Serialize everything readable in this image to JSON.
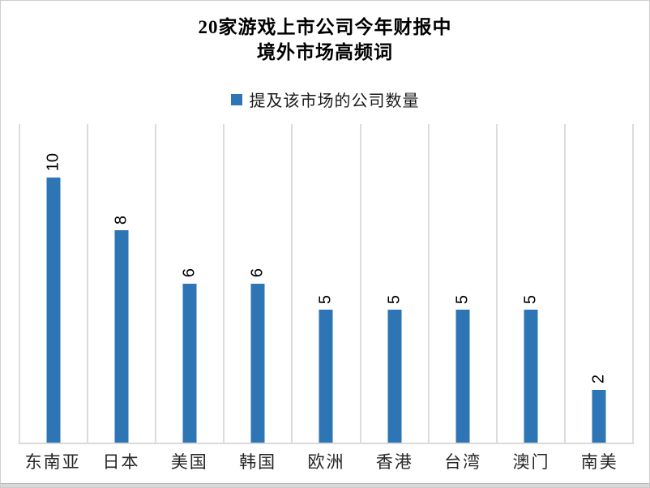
{
  "chart": {
    "title_line1": "20家游戏上市公司今年财报中",
    "title_line2": "境外市场高频词",
    "legend_label": "提及该市场的公司数量"
  },
  "chart_data": {
    "type": "bar",
    "title": "20家游戏上市公司今年财报中 境外市场高频词",
    "categories": [
      "东南亚",
      "日本",
      "美国",
      "韩国",
      "欧洲",
      "香港",
      "台湾",
      "澳门",
      "南美"
    ],
    "series": [
      {
        "name": "提及该市场的公司数量",
        "values": [
          10,
          8,
          6,
          6,
          5,
          5,
          5,
          5,
          2
        ]
      }
    ],
    "xlabel": "",
    "ylabel": "",
    "ylim": [
      0,
      12
    ],
    "y_axis_visible": false,
    "grid": "vertical-category-separators",
    "legend_position": "top",
    "data_labels": {
      "shown": true,
      "rotation_degrees": -90
    },
    "colors": {
      "bar": "#2E75B6",
      "gridline": "#DCDCDC",
      "axis_line": "#D9D9D9",
      "text": "#000000"
    }
  }
}
